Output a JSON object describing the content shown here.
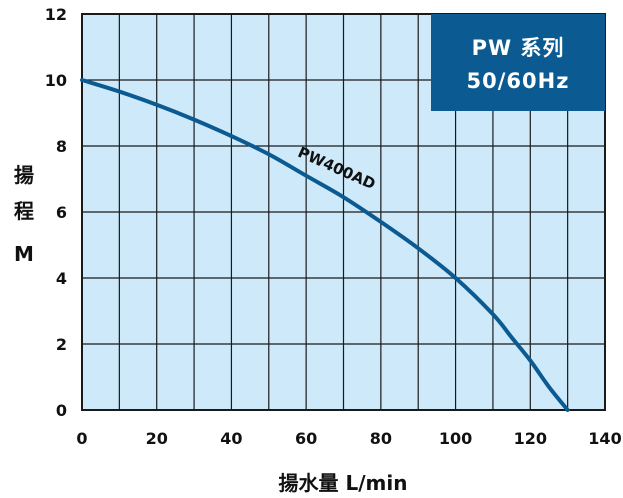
{
  "chart_data": {
    "type": "line",
    "xlabel": "揚水量 L/min",
    "ylabel_chars": [
      "揚",
      "程",
      "M"
    ],
    "xlim": [
      0,
      140
    ],
    "ylim": [
      0,
      12
    ],
    "x_ticks": [
      0,
      20,
      40,
      60,
      80,
      100,
      120,
      140
    ],
    "y_ticks": [
      0,
      2,
      4,
      6,
      8,
      10,
      12
    ],
    "x_tick_labels": [
      "0",
      "20",
      "40",
      "60",
      "80",
      "100",
      "120",
      "140"
    ],
    "y_tick_labels": [
      "0",
      "2",
      "4",
      "6",
      "8",
      "10",
      "12"
    ],
    "x_minor_step": 10,
    "grid": true,
    "series": [
      {
        "name": "PW400AD",
        "x": [
          0,
          10,
          20,
          30,
          40,
          50,
          60,
          70,
          80,
          90,
          100,
          110,
          115,
          120,
          125,
          130
        ],
        "y": [
          10.0,
          9.65,
          9.25,
          8.8,
          8.3,
          7.75,
          7.1,
          6.45,
          5.7,
          4.9,
          4.0,
          2.9,
          2.2,
          1.5,
          0.7,
          0.0
        ]
      }
    ],
    "legend_box": {
      "line1": "PW 系列",
      "line2": "50/60Hz",
      "position": "top-right"
    }
  },
  "colors": {
    "plot_bg": "#cde9fa",
    "grid": "#1a1a1a",
    "curve": "#0b5a91",
    "box_bg": "#0b5a91",
    "text": "#111111"
  }
}
